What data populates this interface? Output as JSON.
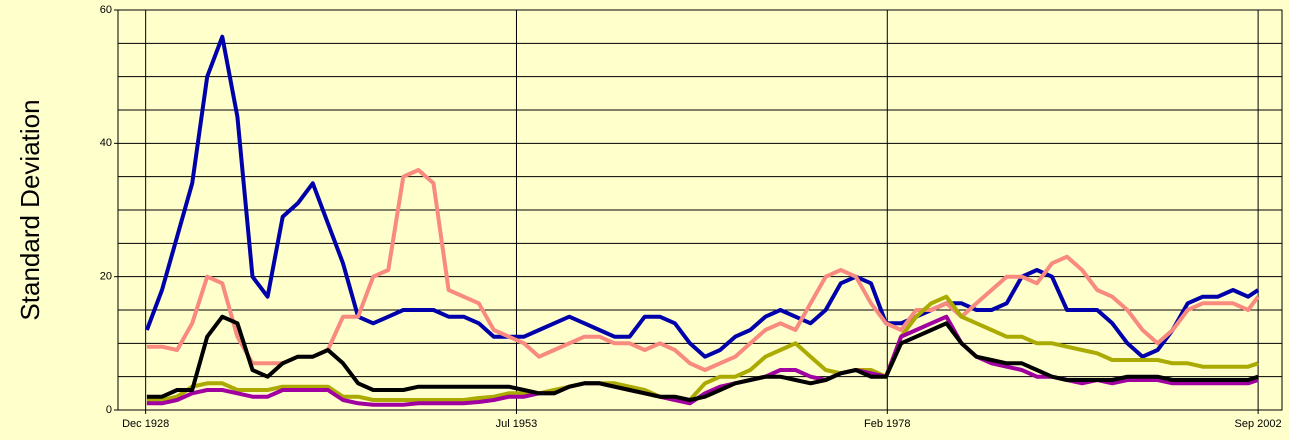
{
  "chart_data": {
    "type": "line",
    "y_label": "Standard Deviation",
    "x": [
      "1929-01",
      "1930-01",
      "1931-01",
      "1932-01",
      "1933-01",
      "1934-01",
      "1935-01",
      "1936-01",
      "1937-01",
      "1938-01",
      "1939-01",
      "1940-01",
      "1941-01",
      "1942-01",
      "1943-01",
      "1944-01",
      "1945-01",
      "1946-01",
      "1947-01",
      "1948-01",
      "1949-01",
      "1950-01",
      "1951-01",
      "1952-01",
      "1953-01",
      "1954-01",
      "1955-01",
      "1956-01",
      "1957-01",
      "1958-01",
      "1959-01",
      "1960-01",
      "1961-01",
      "1962-01",
      "1963-01",
      "1964-01",
      "1965-01",
      "1966-01",
      "1967-01",
      "1968-01",
      "1969-01",
      "1970-01",
      "1971-01",
      "1972-01",
      "1973-01",
      "1974-01",
      "1975-01",
      "1976-01",
      "1977-01",
      "1978-01",
      "1979-01",
      "1980-01",
      "1981-01",
      "1982-01",
      "1983-01",
      "1984-01",
      "1985-01",
      "1986-01",
      "1987-01",
      "1988-01",
      "1989-01",
      "1990-01",
      "1991-01",
      "1992-01",
      "1993-01",
      "1994-01",
      "1995-01",
      "1996-01",
      "1997-01",
      "1998-01",
      "1999-01",
      "2000-01",
      "2001-01",
      "2002-01",
      "2002-09"
    ],
    "series": [
      {
        "color": "#0000aa",
        "values": [
          12,
          18,
          26,
          34,
          50,
          56,
          44,
          20,
          17,
          29,
          31,
          34,
          28,
          22,
          14,
          13,
          14,
          15,
          15,
          15,
          14,
          14,
          13,
          11,
          11,
          11,
          12,
          13,
          14,
          13,
          12,
          11,
          11,
          14,
          14,
          13,
          10,
          8,
          9,
          11,
          12,
          14,
          15,
          14,
          13,
          15,
          19,
          20,
          19,
          13,
          13,
          14,
          15,
          16,
          16,
          15,
          15,
          16,
          20,
          21,
          20,
          15,
          15,
          15,
          13,
          10,
          8,
          9,
          12,
          16,
          17,
          17,
          18,
          17,
          18
        ]
      },
      {
        "color": "#f88a80",
        "values": [
          9.5,
          9.5,
          9,
          13,
          20,
          19,
          11,
          7,
          7,
          7,
          8,
          8,
          9,
          14,
          14,
          20,
          21,
          35,
          36,
          34,
          18,
          17,
          16,
          12,
          11,
          10,
          8,
          9,
          10,
          11,
          11,
          10,
          10,
          9,
          10,
          9,
          7,
          6,
          7,
          8,
          10,
          12,
          13,
          12,
          16,
          20,
          21,
          20,
          16,
          13,
          12,
          15,
          15,
          16,
          14,
          16,
          18,
          20,
          20,
          19,
          22,
          23,
          21,
          18,
          17,
          15,
          12,
          10,
          12,
          15,
          16,
          16,
          16,
          15,
          17
        ]
      },
      {
        "color": "#aaaa00",
        "values": [
          1.5,
          1.5,
          2,
          3.5,
          4,
          4,
          3,
          3,
          3,
          3.5,
          3.5,
          3.5,
          3.5,
          2,
          2,
          1.5,
          1.5,
          1.5,
          1.5,
          1.5,
          1.5,
          1.5,
          1.8,
          2,
          2.5,
          2.5,
          2.5,
          3,
          3.5,
          4,
          4,
          4,
          3.5,
          3,
          2,
          1.5,
          1.5,
          4,
          5,
          5,
          6,
          8,
          9,
          10,
          8,
          6,
          5.5,
          6,
          6,
          5,
          11,
          14,
          16,
          17,
          14,
          13,
          12,
          11,
          11,
          10,
          10,
          9.5,
          9,
          8.5,
          7.5,
          7.5,
          7.5,
          7.5,
          7,
          7,
          6.5,
          6.5,
          6.5,
          6.5,
          7
        ]
      },
      {
        "color": "#a000a0",
        "values": [
          1,
          1,
          1.5,
          2.5,
          3,
          3,
          2.5,
          2,
          2,
          3,
          3,
          3,
          3,
          1.5,
          1,
          0.8,
          0.8,
          0.8,
          1,
          1,
          1,
          1,
          1.2,
          1.5,
          2,
          2,
          2.5,
          2.5,
          3.5,
          4,
          4,
          3.5,
          3,
          2.5,
          2,
          1.5,
          1,
          2.5,
          3.5,
          4,
          4.5,
          5,
          6,
          6,
          5,
          4.5,
          5.5,
          6,
          5.5,
          5,
          11,
          12,
          13,
          14,
          10,
          8,
          7,
          6.5,
          6,
          5,
          5,
          4.5,
          4,
          4.5,
          4,
          4.5,
          4.5,
          4.5,
          4,
          4,
          4,
          4,
          4,
          4,
          4.5
        ]
      },
      {
        "color": "#000000",
        "values": [
          2,
          2,
          3,
          3,
          11,
          14,
          13,
          6,
          5,
          7,
          8,
          8,
          9,
          7,
          4,
          3,
          3,
          3,
          3.5,
          3.5,
          3.5,
          3.5,
          3.5,
          3.5,
          3.5,
          3,
          2.5,
          2.5,
          3.5,
          4,
          4,
          3.5,
          3,
          2.5,
          2,
          2,
          1.5,
          2,
          3,
          4,
          4.5,
          5,
          5,
          4.5,
          4,
          4.5,
          5.5,
          6,
          5,
          5,
          10,
          11,
          12,
          13,
          10,
          8,
          7.5,
          7,
          7,
          6,
          5,
          4.5,
          4.5,
          4.5,
          4.5,
          5,
          5,
          5,
          4.5,
          4.5,
          4.5,
          4.5,
          4.5,
          4.5,
          5
        ]
      }
    ],
    "xlim": [
      "1927-02",
      "2004-04"
    ],
    "xticks": [
      {
        "value": "1928-12",
        "label": "Dec 1928"
      },
      {
        "value": "1953-07",
        "label": "Jul 1953"
      },
      {
        "value": "1978-02",
        "label": "Feb 1978"
      },
      {
        "value": "2002-09",
        "label": "Sep 2002"
      }
    ],
    "ylim": [
      0,
      60
    ],
    "yticks": [
      0,
      20,
      40,
      60
    ],
    "y_minor_ticks": [
      5,
      10,
      15,
      25,
      30,
      35,
      45,
      50,
      55
    ],
    "grid": true,
    "background": "#ffffcc"
  }
}
